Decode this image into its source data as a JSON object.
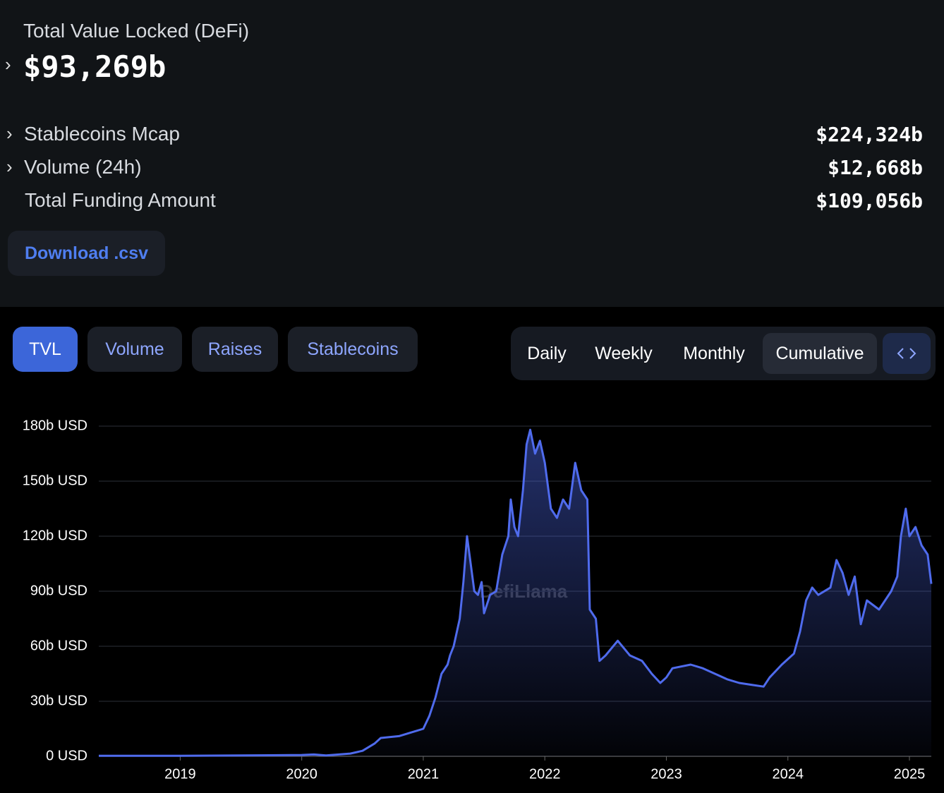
{
  "header": {
    "label": "Total Value Locked (DeFi)",
    "value": "$93,269b",
    "stats": [
      {
        "label": "Stablecoins Mcap",
        "value": "$224,324b"
      },
      {
        "label": "Volume (24h)",
        "value": "$12,668b"
      },
      {
        "label": "Total Funding Amount",
        "value": "$109,056b"
      }
    ],
    "download": "Download .csv"
  },
  "tabs": [
    "TVL",
    "Volume",
    "Raises",
    "Stablecoins"
  ],
  "periods": [
    "Daily",
    "Weekly",
    "Monthly",
    "Cumulative"
  ],
  "chart_data": {
    "type": "area",
    "watermark": "DefiLlama",
    "color": "#4f6bed",
    "grid": true,
    "xlim": [
      2018.33,
      2025.18
    ],
    "xticks": [
      2019,
      2020,
      2021,
      2022,
      2023,
      2024,
      2025
    ],
    "ylim": [
      0,
      180
    ],
    "yticks": [
      {
        "value": 0,
        "label": "0 USD"
      },
      {
        "value": 30,
        "label": "30b USD"
      },
      {
        "value": 60,
        "label": "60b USD"
      },
      {
        "value": 90,
        "label": "90b USD"
      },
      {
        "value": 120,
        "label": "120b USD"
      },
      {
        "value": 150,
        "label": "150b USD"
      },
      {
        "value": 180,
        "label": "180b USD"
      }
    ],
    "series": [
      {
        "name": "TVL",
        "x": [
          2018.33,
          2019,
          2019.5,
          2020,
          2020.1,
          2020.2,
          2020.4,
          2020.5,
          2020.6,
          2020.65,
          2020.8,
          2020.9,
          2021.0,
          2021.05,
          2021.1,
          2021.15,
          2021.2,
          2021.22,
          2021.25,
          2021.3,
          2021.33,
          2021.36,
          2021.38,
          2021.42,
          2021.45,
          2021.48,
          2021.5,
          2021.55,
          2021.6,
          2021.65,
          2021.7,
          2021.72,
          2021.75,
          2021.78,
          2021.82,
          2021.85,
          2021.88,
          2021.92,
          2021.96,
          2022.0,
          2022.05,
          2022.1,
          2022.15,
          2022.2,
          2022.25,
          2022.3,
          2022.35,
          2022.37,
          2022.42,
          2022.45,
          2022.5,
          2022.6,
          2022.7,
          2022.8,
          2022.88,
          2022.95,
          2023.0,
          2023.05,
          2023.2,
          2023.3,
          2023.4,
          2023.5,
          2023.6,
          2023.7,
          2023.8,
          2023.85,
          2023.95,
          2024.05,
          2024.1,
          2024.15,
          2024.2,
          2024.25,
          2024.35,
          2024.4,
          2024.45,
          2024.5,
          2024.55,
          2024.6,
          2024.65,
          2024.75,
          2024.85,
          2024.9,
          2024.93,
          2024.97,
          2025.0,
          2025.05,
          2025.1,
          2025.15,
          2025.18
        ],
        "values": [
          0.3,
          0.3,
          0.5,
          0.7,
          1,
          0.5,
          1.5,
          3,
          7,
          10,
          11,
          13,
          15,
          22,
          32,
          45,
          50,
          55,
          60,
          75,
          95,
          120,
          110,
          90,
          88,
          95,
          78,
          88,
          90,
          110,
          120,
          140,
          125,
          120,
          145,
          170,
          178,
          165,
          172,
          160,
          135,
          130,
          140,
          135,
          160,
          145,
          140,
          80,
          75,
          52,
          55,
          63,
          55,
          52,
          45,
          40,
          43,
          48,
          50,
          48,
          45,
          42,
          40,
          39,
          38,
          43,
          50,
          56,
          68,
          85,
          92,
          88,
          92,
          107,
          100,
          88,
          98,
          72,
          85,
          80,
          90,
          98,
          120,
          135,
          120,
          125,
          115,
          110,
          94
        ]
      }
    ]
  }
}
